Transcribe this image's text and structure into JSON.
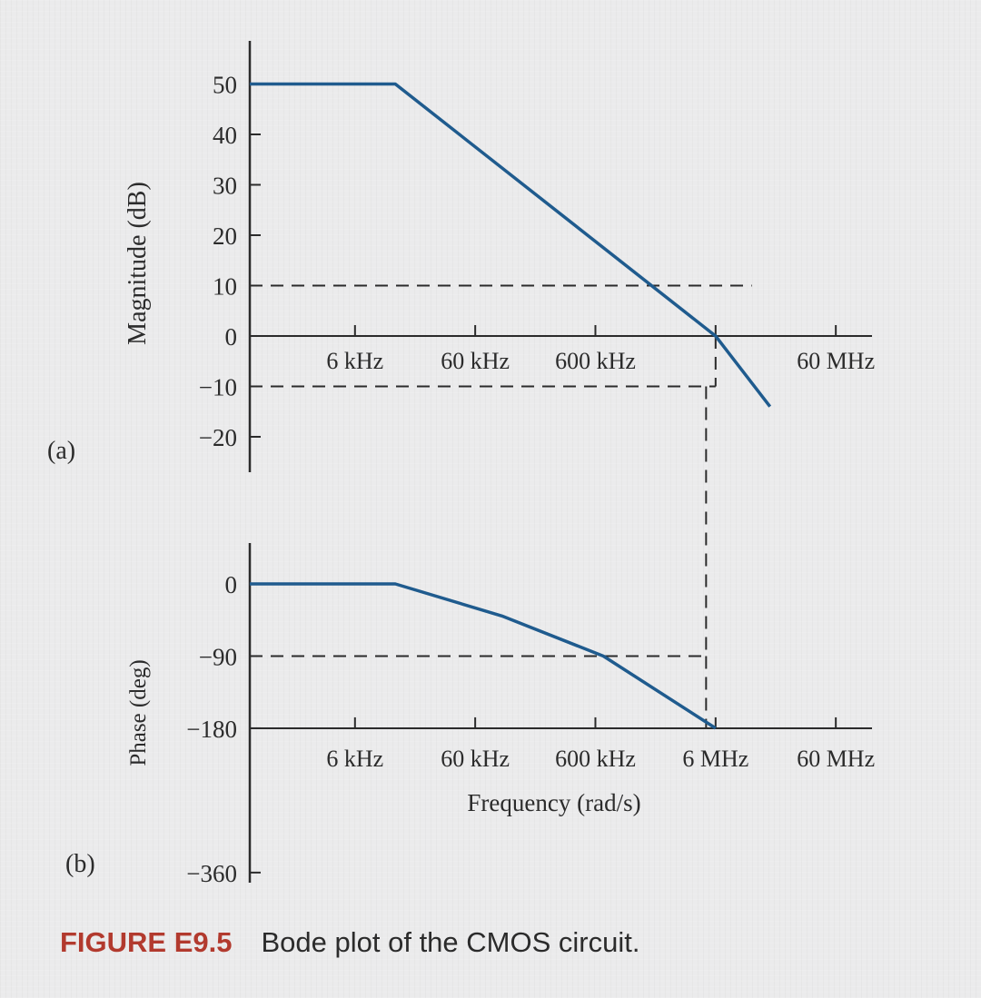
{
  "chart_data": [
    {
      "panel": "(a)",
      "type": "line",
      "ylabel": "Magnitude (dB)",
      "xlabel": "",
      "x_scale": "log",
      "x_ticks": [
        {
          "hz": 6000,
          "label": "6 kHz"
        },
        {
          "hz": 60000,
          "label": "60 kHz"
        },
        {
          "hz": 600000,
          "label": "600 kHz"
        },
        {
          "hz": 6000000,
          "label": ""
        },
        {
          "hz": 60000000,
          "label": "60 MHz"
        }
      ],
      "y_ticks": [
        50,
        40,
        30,
        20,
        10,
        0,
        -10,
        -20
      ],
      "y_tick_labels": [
        "50",
        "40",
        "30",
        "20",
        "10",
        "0",
        "−10",
        "−20"
      ],
      "ylim": [
        -20,
        50
      ],
      "xlim_hz": [
        800,
        120000000
      ],
      "guides": [
        {
          "type": "horizontal",
          "y": 10,
          "to_hz": 12000000
        },
        {
          "type": "horizontal",
          "y": -10,
          "to_hz": 6000000
        },
        {
          "type": "vertical",
          "x_hz": 6000000,
          "from_y": 0,
          "to_y": -10
        }
      ],
      "series": [
        {
          "x_hz": [
            800,
            13000,
            6000000,
            17000000
          ],
          "y": [
            50,
            50,
            0,
            -14
          ]
        }
      ]
    },
    {
      "panel": "(b)",
      "type": "line",
      "ylabel": "Phase (deg)",
      "xlabel": "Frequency (rad/s)",
      "x_scale": "log",
      "x_ticks": [
        {
          "hz": 6000,
          "label": "6 kHz"
        },
        {
          "hz": 60000,
          "label": "60 kHz"
        },
        {
          "hz": 600000,
          "label": "600 kHz"
        },
        {
          "hz": 6000000,
          "label": "6 MHz"
        },
        {
          "hz": 60000000,
          "label": "60 MHz"
        }
      ],
      "y_ticks": [
        0,
        -90,
        -180,
        -360
      ],
      "y_tick_labels": [
        "0",
        "−90",
        "−180",
        "−360"
      ],
      "ylim": [
        -360,
        0
      ],
      "xlim_hz": [
        800,
        120000000
      ],
      "guides": [
        {
          "type": "horizontal",
          "y": -90,
          "to_hz": 5000000
        },
        {
          "type": "vertical",
          "x_hz": 5000000,
          "from_y": -90,
          "to_y": -180
        }
      ],
      "series": [
        {
          "x_hz": [
            800,
            13000,
            100000,
            700000,
            6000000
          ],
          "y": [
            0,
            0,
            -40,
            -90,
            -180
          ]
        }
      ]
    }
  ],
  "panel_labels": {
    "a": "(a)",
    "b": "(b)"
  },
  "caption": {
    "id": "FIGURE E9.5",
    "text": "Bode plot of the CMOS circuit."
  },
  "colors": {
    "curve": "#1f5b8e",
    "axis": "#2b2b2b",
    "caption_id": "#b23a2e"
  }
}
